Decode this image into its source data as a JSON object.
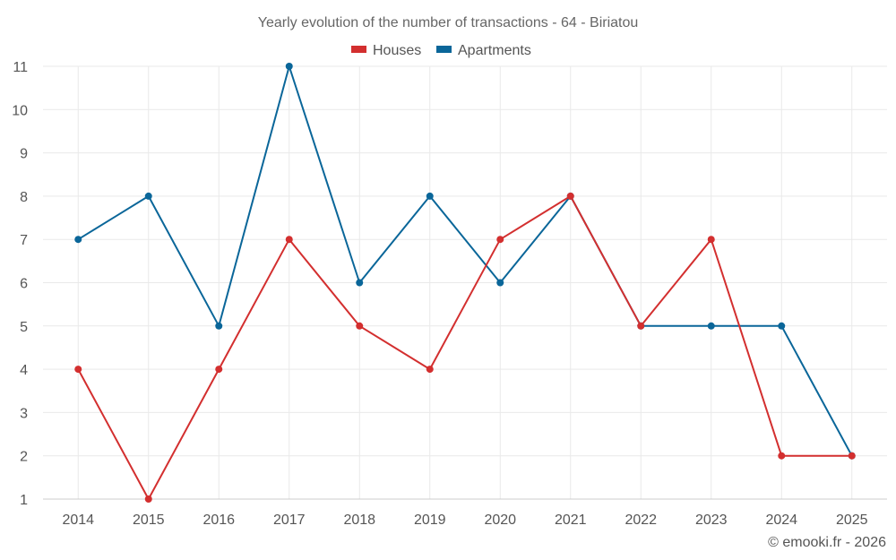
{
  "chart_data": {
    "type": "line",
    "title": "Yearly evolution of the number of transactions - 64 - Biriatou",
    "categories": [
      "2014",
      "2015",
      "2016",
      "2017",
      "2018",
      "2019",
      "2020",
      "2021",
      "2022",
      "2023",
      "2024",
      "2025"
    ],
    "ylim": [
      1,
      11
    ],
    "yticks": [
      1,
      2,
      3,
      4,
      5,
      6,
      7,
      8,
      9,
      10,
      11
    ],
    "grid": true,
    "legend_position": "top-center",
    "series": [
      {
        "name": "Houses",
        "color": "#d32f2f",
        "values": [
          4,
          1,
          4,
          7,
          5,
          4,
          7,
          8,
          5,
          7,
          2,
          2
        ]
      },
      {
        "name": "Apartments",
        "color": "#0a6699",
        "values": [
          7,
          8,
          5,
          11,
          6,
          8,
          6,
          8,
          5,
          5,
          5,
          2
        ]
      }
    ]
  },
  "credit": "© emooki.fr - 2026"
}
